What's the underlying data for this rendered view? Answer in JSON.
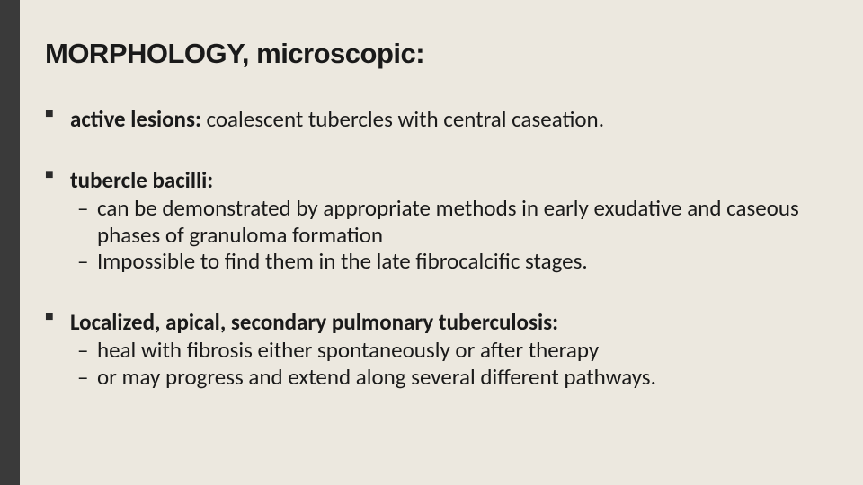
{
  "colors": {
    "background": "#ece8df",
    "sidebar": "#3a3a3a",
    "text": "#1a1a1a"
  },
  "title": "MORPHOLOGY, microscopic:",
  "bullets": [
    {
      "lead": "active lesions:",
      "rest": " coalescent tubercles with central caseation.",
      "subs": []
    },
    {
      "lead": "tubercle bacilli:",
      "rest": "",
      "subs": [
        "can be demonstrated by appropriate methods in early exudative and caseous phases of granuloma formation",
        "Impossible to find them in the late fibrocalcific stages."
      ]
    },
    {
      "lead": "Localized, apical, secondary pulmonary tuberculosis:",
      "rest": "",
      "subs": [
        "heal with fibrosis either spontaneously or after therapy",
        " or may progress and extend along several different pathways."
      ]
    }
  ]
}
